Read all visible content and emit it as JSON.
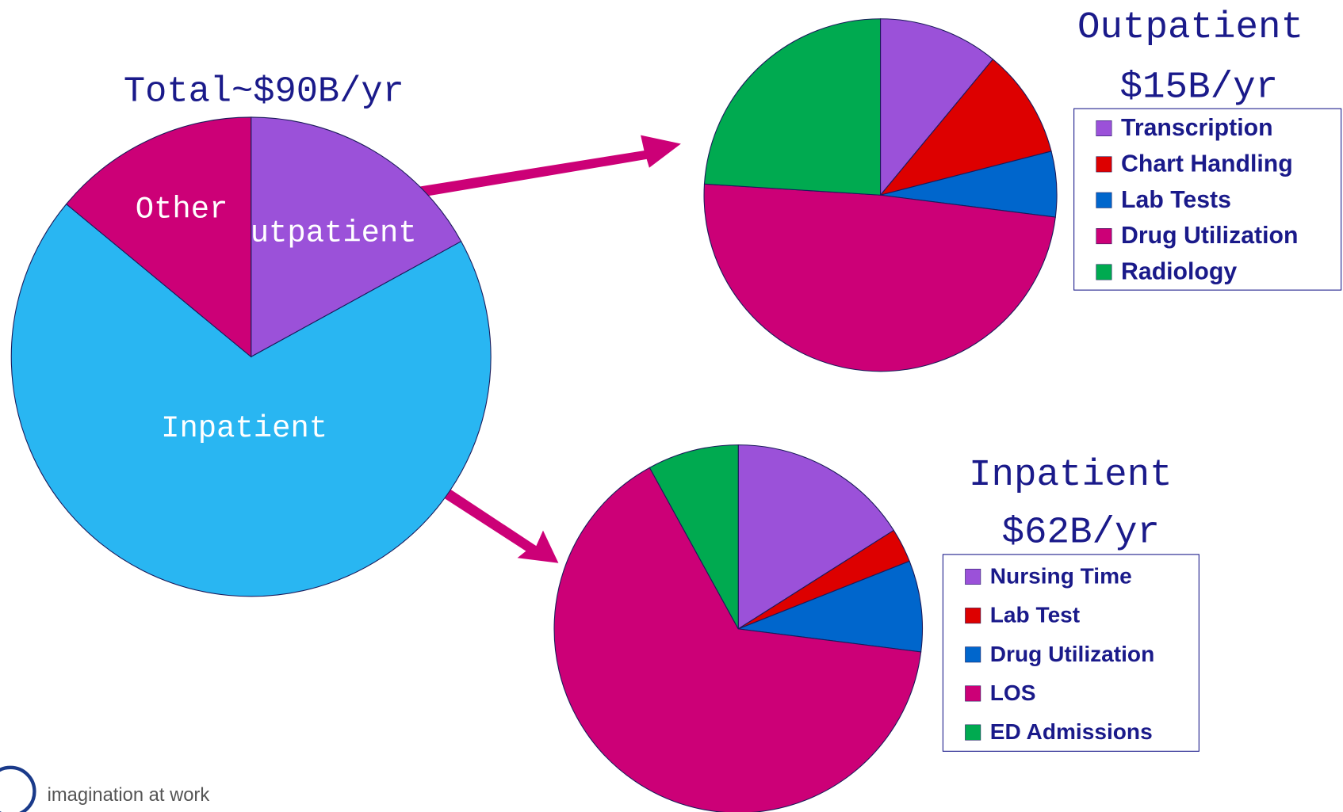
{
  "chart_data": [
    {
      "type": "pie",
      "title": "Total~$90B/yr",
      "categories": [
        "Outpatient",
        "Inpatient",
        "Other"
      ],
      "values": [
        17,
        69,
        14
      ],
      "colors": [
        "#9b51d9",
        "#29b6f2",
        "#cc0077"
      ],
      "labels": "inside"
    },
    {
      "type": "pie",
      "title": "Outpatient",
      "subtitle": "$15B/yr",
      "categories": [
        "Transcription",
        "Chart Handling",
        "Lab Tests",
        "Drug Utilization",
        "Radiology"
      ],
      "values": [
        11,
        10,
        6,
        49,
        24
      ],
      "colors": [
        "#9b51d9",
        "#dd0000",
        "#0066cc",
        "#cc0077",
        "#00aa50"
      ],
      "legend": "right"
    },
    {
      "type": "pie",
      "title": "Inpatient",
      "subtitle": "$62B/yr",
      "categories": [
        "Nursing Time",
        "Lab Test",
        "Drug Utilization",
        "LOS",
        "ED Admissions"
      ],
      "values": [
        16,
        3,
        8,
        65,
        8
      ],
      "colors": [
        "#9b51d9",
        "#dd0000",
        "#0066cc",
        "#cc0077",
        "#00aa50"
      ],
      "legend": "right"
    }
  ],
  "footer": "imagination at work"
}
